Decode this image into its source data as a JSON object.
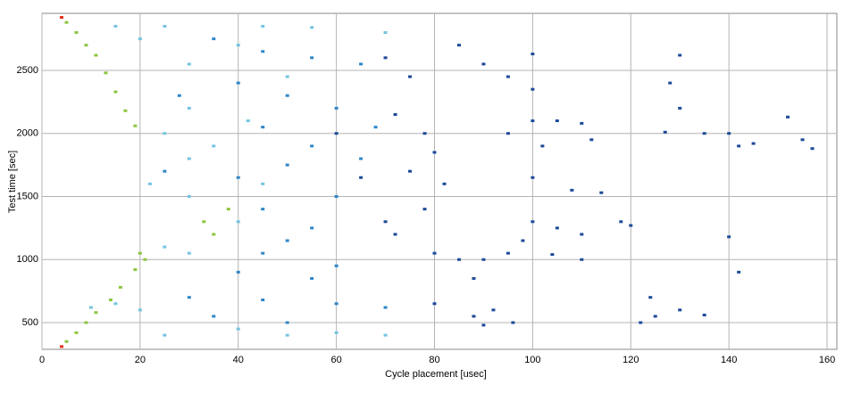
{
  "chart_data": {
    "type": "scatter",
    "x_label": "Cycle placement [usec]",
    "y_label": "Test time [sec]",
    "xlim": [
      0,
      162
    ],
    "ylim": [
      288,
      2952
    ],
    "xticks": [
      0,
      20,
      40,
      60,
      80,
      100,
      120,
      140,
      160
    ],
    "yticks": [
      500,
      1000,
      1500,
      2000,
      2500
    ],
    "grid": true,
    "series": [
      {
        "color": "#1d4a98",
        "x": [
          70,
          75,
          72,
          78,
          80,
          75,
          82,
          78,
          72,
          80,
          85,
          90,
          88,
          95,
          100,
          105,
          110,
          98,
          95,
          100,
          105,
          110,
          100,
          95,
          90,
          85,
          100,
          108,
          114,
          100,
          102,
          112,
          130,
          128,
          130,
          140,
          142,
          145,
          152,
          155,
          157,
          127,
          135,
          140,
          142,
          122,
          124,
          125,
          130,
          135,
          92,
          88,
          80,
          110,
          104,
          118,
          120,
          90,
          96,
          60,
          65,
          70
        ],
        "values": [
          2600,
          2450,
          2150,
          2000,
          1850,
          1700,
          1600,
          1400,
          1200,
          1050,
          1000,
          1000,
          850,
          1050,
          1300,
          1250,
          1200,
          1150,
          2000,
          2100,
          2100,
          2080,
          2350,
          2450,
          2550,
          2700,
          2630,
          1550,
          1530,
          1650,
          1900,
          1950,
          2620,
          2400,
          2200,
          2000,
          1900,
          1920,
          2130,
          1950,
          1880,
          2010,
          2000,
          1180,
          900,
          500,
          700,
          550,
          600,
          560,
          600,
          550,
          650,
          1000,
          1040,
          1300,
          1270,
          480,
          500,
          2000,
          1650,
          1300
        ]
      },
      {
        "color": "#2f86c8",
        "x": [
          35,
          45,
          55,
          65,
          40,
          50,
          60,
          45,
          55,
          50,
          40,
          60,
          45,
          55,
          50,
          45,
          60,
          40,
          55,
          30,
          45,
          60,
          70,
          35,
          50,
          25,
          28,
          65,
          68
        ],
        "values": [
          2750,
          2650,
          2600,
          2550,
          2400,
          2300,
          2200,
          2050,
          1900,
          1750,
          1650,
          1500,
          1400,
          1250,
          1150,
          1050,
          950,
          900,
          850,
          700,
          680,
          650,
          620,
          550,
          500,
          1700,
          2300,
          1800,
          2050
        ]
      },
      {
        "color": "#74c4e2",
        "x": [
          15,
          25,
          45,
          55,
          70,
          40,
          20,
          30,
          50,
          25,
          30,
          22,
          30,
          40,
          25,
          30,
          15,
          20,
          40,
          50,
          60,
          70,
          25,
          10,
          45,
          35,
          30,
          42
        ],
        "values": [
          2850,
          2850,
          2850,
          2840,
          2800,
          2700,
          2750,
          2550,
          2450,
          2000,
          1800,
          1600,
          1500,
          1300,
          1100,
          1050,
          650,
          600,
          450,
          400,
          420,
          400,
          400,
          620,
          1600,
          1900,
          2200,
          2100
        ]
      },
      {
        "color": "#8cc63f",
        "x": [
          5,
          7,
          9,
          11,
          13,
          15,
          17,
          19,
          5,
          7,
          9,
          11,
          14,
          16,
          19,
          21,
          20,
          35,
          33,
          38
        ],
        "values": [
          2880,
          2800,
          2700,
          2620,
          2480,
          2330,
          2180,
          2060,
          350,
          420,
          500,
          580,
          680,
          780,
          920,
          1000,
          1050,
          1200,
          1300,
          1400
        ]
      },
      {
        "color": "#e8301c",
        "x": [
          4,
          4
        ],
        "values": [
          2920,
          310
        ]
      }
    ]
  }
}
